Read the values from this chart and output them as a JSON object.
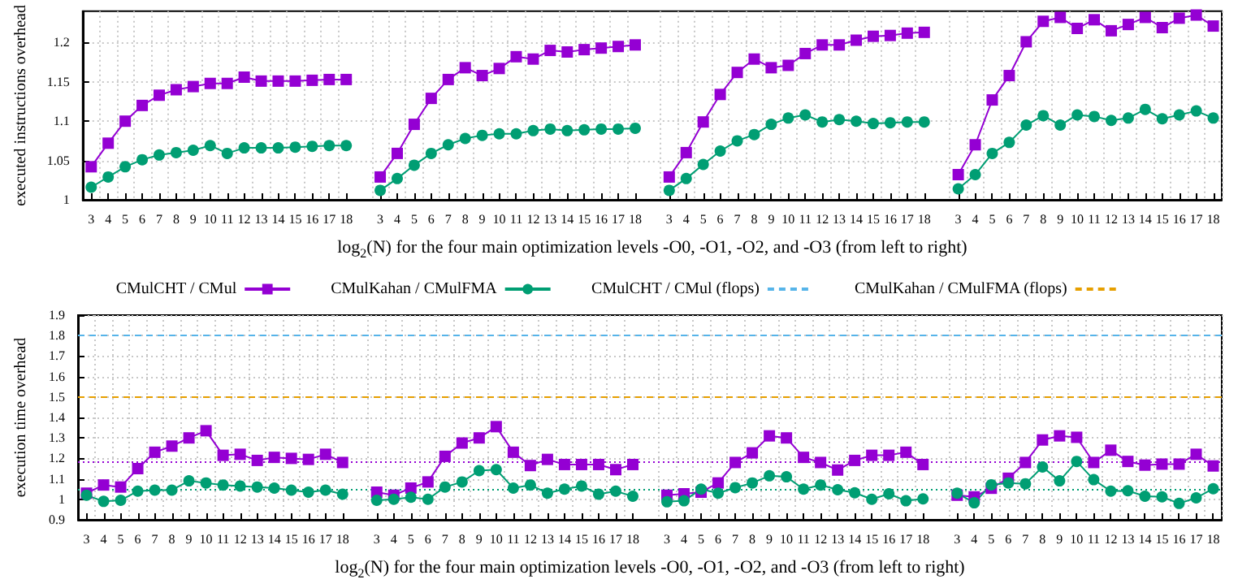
{
  "chart_data": [
    {
      "type": "line",
      "ylabel": "executed instructions overhead",
      "xlabel": "log$_{2}$(N) for the four main optimization levels -O0, -O1, -O2, and -O3 (from left to right)",
      "categories": [
        "3",
        "4",
        "5",
        "6",
        "7",
        "8",
        "9",
        "10",
        "11",
        "12",
        "13",
        "14",
        "15",
        "16",
        "17",
        "18",
        null,
        "3",
        "4",
        "5",
        "6",
        "7",
        "8",
        "9",
        "10",
        "11",
        "12",
        "13",
        "14",
        "15",
        "16",
        "17",
        "18",
        null,
        "3",
        "4",
        "5",
        "6",
        "7",
        "8",
        "9",
        "10",
        "11",
        "12",
        "13",
        "14",
        "15",
        "16",
        "17",
        "18",
        null,
        "3",
        "4",
        "5",
        "6",
        "7",
        "8",
        "9",
        "10",
        "11",
        "12",
        "13",
        "14",
        "15",
        "16",
        "17",
        "18"
      ],
      "ylim": [
        1,
        1.24
      ],
      "yticks": [
        1,
        1.05,
        1.1,
        1.15,
        1.2
      ],
      "grid": true,
      "series": [
        {
          "color": "#9400d3",
          "marker": "square",
          "values": [
            1.042,
            1.072,
            1.1,
            1.12,
            1.133,
            1.14,
            1.144,
            1.148,
            1.148,
            1.156,
            1.151,
            1.151,
            1.151,
            1.152,
            1.153,
            1.153,
            null,
            1.029,
            1.059,
            1.096,
            1.129,
            1.153,
            1.168,
            1.158,
            1.167,
            1.182,
            1.179,
            1.19,
            1.188,
            1.191,
            1.193,
            1.195,
            1.197,
            null,
            1.029,
            1.06,
            1.099,
            1.134,
            1.162,
            1.179,
            1.168,
            1.171,
            1.186,
            1.197,
            1.197,
            1.203,
            1.208,
            1.209,
            1.212,
            1.213,
            null,
            1.032,
            1.07,
            1.127,
            1.158,
            1.201,
            1.227,
            1.232,
            1.218,
            1.229,
            1.215,
            1.223,
            1.232,
            1.219,
            1.231,
            1.235,
            1.221
          ]
        },
        {
          "color": "#009e73",
          "marker": "circle",
          "values": [
            1.016,
            1.029,
            1.042,
            1.051,
            1.057,
            1.06,
            1.063,
            1.069,
            1.059,
            1.066,
            1.066,
            1.066,
            1.067,
            1.068,
            1.069,
            1.069,
            null,
            1.012,
            1.027,
            1.044,
            1.059,
            1.07,
            1.078,
            1.082,
            1.084,
            1.084,
            1.088,
            1.09,
            1.088,
            1.089,
            1.09,
            1.09,
            1.091,
            null,
            1.012,
            1.027,
            1.045,
            1.062,
            1.075,
            1.083,
            1.096,
            1.104,
            1.108,
            1.099,
            1.102,
            1.1,
            1.097,
            1.098,
            1.099,
            1.099,
            null,
            1.014,
            1.032,
            1.059,
            1.073,
            1.095,
            1.107,
            1.095,
            1.108,
            1.106,
            1.101,
            1.104,
            1.115,
            1.103,
            1.108,
            1.113,
            1.104
          ]
        }
      ]
    },
    {
      "type": "line",
      "ylabel": "execution time overhead",
      "xlabel": "log$_{2}$(N) for the four main optimization levels -O0, -O1, -O2, and -O3 (from left to right)",
      "categories": [
        "3",
        "4",
        "5",
        "6",
        "7",
        "8",
        "9",
        "10",
        "11",
        "12",
        "13",
        "14",
        "15",
        "16",
        "17",
        "18",
        null,
        "3",
        "4",
        "5",
        "6",
        "7",
        "8",
        "9",
        "10",
        "11",
        "12",
        "13",
        "14",
        "15",
        "16",
        "17",
        "18",
        null,
        "3",
        "4",
        "5",
        "6",
        "7",
        "8",
        "9",
        "10",
        "11",
        "12",
        "13",
        "14",
        "15",
        "16",
        "17",
        "18",
        null,
        "3",
        "4",
        "5",
        "6",
        "7",
        "8",
        "9",
        "10",
        "11",
        "12",
        "13",
        "14",
        "15",
        "16",
        "17",
        "18"
      ],
      "ylim": [
        0.9,
        1.9
      ],
      "yticks": [
        0.9,
        1,
        1.1,
        1.2,
        1.3,
        1.4,
        1.5,
        1.6,
        1.7,
        1.8,
        1.9
      ],
      "grid": true,
      "legend": "top",
      "series": [
        {
          "name": "CMulCHT / CMul",
          "color": "#9400d3",
          "marker": "square",
          "values": [
            1.03,
            1.07,
            1.06,
            1.15,
            1.23,
            1.26,
            1.3,
            1.335,
            1.215,
            1.22,
            1.19,
            1.205,
            1.2,
            1.195,
            1.22,
            1.18,
            null,
            1.035,
            1.02,
            1.055,
            1.085,
            1.21,
            1.275,
            1.3,
            1.355,
            1.23,
            1.165,
            1.195,
            1.17,
            1.17,
            1.17,
            1.145,
            1.17,
            null,
            1.02,
            1.027,
            1.035,
            1.08,
            1.18,
            1.227,
            1.31,
            1.3,
            1.205,
            1.18,
            1.143,
            1.19,
            1.215,
            1.215,
            1.23,
            1.17,
            null,
            1.02,
            1.012,
            1.054,
            1.103,
            1.18,
            1.29,
            1.31,
            1.303,
            1.18,
            1.24,
            1.185,
            1.167,
            1.172,
            1.172,
            1.22,
            1.163
          ]
        },
        {
          "name": "CMulKahan / CMulFMA",
          "color": "#009e73",
          "marker": "circle",
          "values": [
            1.02,
            0.99,
            0.995,
            1.04,
            1.045,
            1.045,
            1.09,
            1.08,
            1.07,
            1.065,
            1.06,
            1.055,
            1.045,
            1.035,
            1.045,
            1.025,
            null,
            0.995,
            1,
            1.01,
            1,
            1.06,
            1.085,
            1.14,
            1.145,
            1.055,
            1.07,
            1.03,
            1.05,
            1.065,
            1.025,
            1.04,
            1.015,
            null,
            0.988,
            0.993,
            1.05,
            1.03,
            1.057,
            1.08,
            1.115,
            1.11,
            1.05,
            1.07,
            1.047,
            1.032,
            1,
            1.027,
            0.993,
            1.002,
            null,
            1.03,
            0.983,
            1.071,
            1.08,
            1.076,
            1.158,
            1.09,
            1.185,
            1.096,
            1.04,
            1.042,
            1.015,
            1.012,
            0.98,
            1.007,
            1.052
          ]
        }
      ],
      "ref_lines": [
        {
          "axis": "y",
          "value": 1.8,
          "label": "CMulCHT / CMul (flops)",
          "color": "#56b4e9",
          "line_style": "dashed"
        },
        {
          "axis": "y",
          "value": 1.5,
          "label": "CMulKahan / CMulFMA (flops)",
          "color": "#e69f00",
          "line_style": "dashed"
        },
        {
          "axis": "y",
          "value": 1.175,
          "color": "#9400d3",
          "line_style": "dotted"
        },
        {
          "axis": "y",
          "value": 1.05,
          "color": "#009e73",
          "line_style": "dotted"
        }
      ]
    }
  ]
}
